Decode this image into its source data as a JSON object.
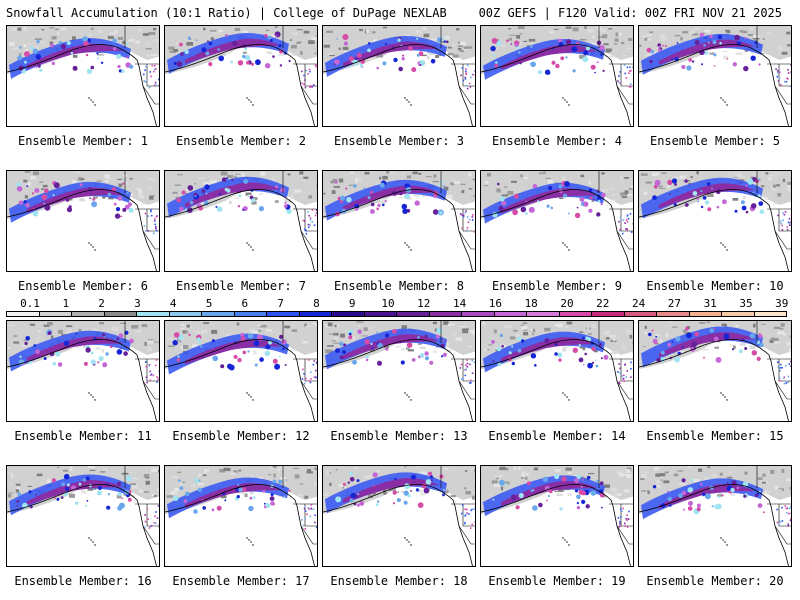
{
  "header": {
    "left": "Snowfall Accumulation (10:1 Ratio) | College of DuPage NEXLAB",
    "right": "00Z GEFS | F120 Valid: 00Z FRI NOV 21 2025"
  },
  "panels": [
    {
      "label": "Ensemble Member: 1"
    },
    {
      "label": "Ensemble Member: 2"
    },
    {
      "label": "Ensemble Member: 3"
    },
    {
      "label": "Ensemble Member: 4"
    },
    {
      "label": "Ensemble Member: 5"
    },
    {
      "label": "Ensemble Member: 6"
    },
    {
      "label": "Ensemble Member: 7"
    },
    {
      "label": "Ensemble Member: 8"
    },
    {
      "label": "Ensemble Member: 9"
    },
    {
      "label": "Ensemble Member: 10"
    },
    {
      "label": "Ensemble Member: 11"
    },
    {
      "label": "Ensemble Member: 12"
    },
    {
      "label": "Ensemble Member: 13"
    },
    {
      "label": "Ensemble Member: 14"
    },
    {
      "label": "Ensemble Member: 15"
    },
    {
      "label": "Ensemble Member: 16"
    },
    {
      "label": "Ensemble Member: 17"
    },
    {
      "label": "Ensemble Member: 18"
    },
    {
      "label": "Ensemble Member: 19"
    },
    {
      "label": "Ensemble Member: 20"
    }
  ],
  "colorbar": {
    "levels": [
      "0.1",
      "1",
      "2",
      "3",
      "4",
      "5",
      "6",
      "7",
      "8",
      "9",
      "10",
      "12",
      "14",
      "16",
      "18",
      "20",
      "22",
      "24",
      "27",
      "31",
      "35",
      "39"
    ],
    "colors": [
      "#f2f2f2",
      "#d4d4d4",
      "#b0b0b0",
      "#8a8a8a",
      "#9fe4f0",
      "#8fc6ee",
      "#6aa6ec",
      "#4a7ff0",
      "#2c54f2",
      "#1626d6",
      "#2a0c8c",
      "#4a1490",
      "#66209a",
      "#8a2ea6",
      "#a94bbf",
      "#c466d6",
      "#d67bd8",
      "#d64aa8",
      "#c42a7e",
      "#d45a80",
      "#e98a8a",
      "#f2b090",
      "#f6caa8",
      "#fbe6cc"
    ]
  }
}
